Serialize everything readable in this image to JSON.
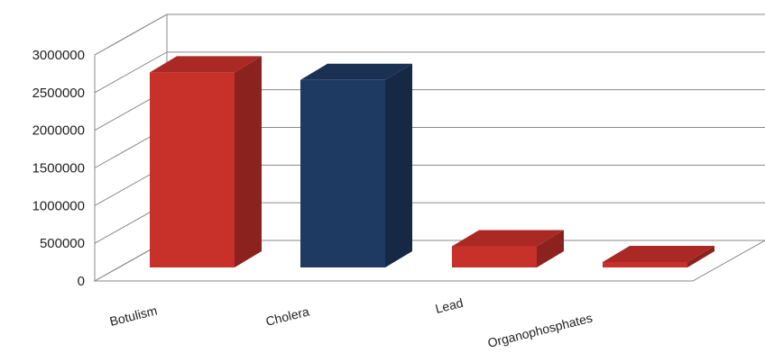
{
  "chart_data": {
    "type": "bar",
    "style": "3d-column",
    "categories": [
      "Botulism",
      "Cholera",
      "Lead",
      "Organophosphates"
    ],
    "values": [
      2850000,
      2740000,
      310000,
      40000
    ],
    "colors": [
      "#c8302a",
      "#1e3a63",
      "#c8302a",
      "#c8302a"
    ],
    "ylim": [
      0,
      3000000
    ],
    "yticks": [
      "0",
      "500000",
      "1000000",
      "1500000",
      "2000000",
      "2500000",
      "3000000"
    ],
    "grid": true,
    "legend": "none",
    "title": "",
    "xlabel": "",
    "ylabel": ""
  }
}
